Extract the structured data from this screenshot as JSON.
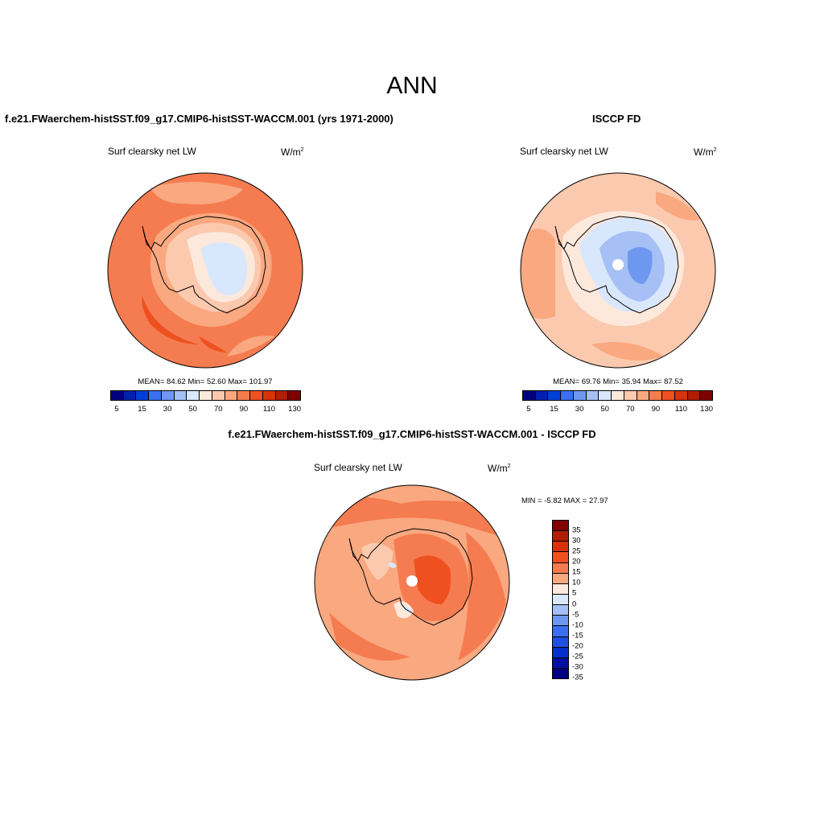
{
  "title": "ANN",
  "panels": [
    {
      "case_title": "f.e21.FWaerchem-histSST.f09_g17.CMIP6-histSST-WACCM.001 (yrs 1971-2000)",
      "variable": "Surf clearsky net LW",
      "units": "W/m",
      "units_sup": "2",
      "stats": "MEAN=  84.62  Min=  52.60  Max= 101.97"
    },
    {
      "case_title": "ISCCP FD",
      "variable": "Surf clearsky net LW",
      "units": "W/m",
      "units_sup": "2",
      "stats": "MEAN=  69.76  Min=  35.94  Max=  87.52"
    },
    {
      "case_title": "f.e21.FWaerchem-histSST.f09_g17.CMIP6-histSST-WACCM.001 - ISCCP FD",
      "variable": "Surf clearsky net LW",
      "units": "W/m",
      "units_sup": "2",
      "stats": "MIN =  -5.82 MAX =  27.97"
    }
  ],
  "colorbar_main": {
    "colors": [
      "#00007f",
      "#0020b0",
      "#0040d8",
      "#3a70f0",
      "#6e98f0",
      "#a6bff5",
      "#d8e7fb",
      "#fde8dc",
      "#fbc9ae",
      "#f9a880",
      "#f57c50",
      "#ef5020",
      "#d83208",
      "#b01e04",
      "#7f0000"
    ],
    "labels": [
      "5",
      "15",
      "30",
      "50",
      "70",
      "90",
      "110",
      "130"
    ]
  },
  "colorbar_diff": {
    "colors": [
      "#800000",
      "#b01e04",
      "#d83208",
      "#ef5020",
      "#f57c50",
      "#f9a880",
      "#fde8dc",
      "#d8e7fb",
      "#a6bff5",
      "#6e98f0",
      "#3a70f0",
      "#2050e0",
      "#0030c8",
      "#0010a0",
      "#00007f"
    ],
    "labels": [
      "35",
      "30",
      "25",
      "20",
      "15",
      "10",
      "5",
      "0",
      "-5",
      "-10",
      "-15",
      "-20",
      "-25",
      "-30",
      "-35"
    ]
  }
}
